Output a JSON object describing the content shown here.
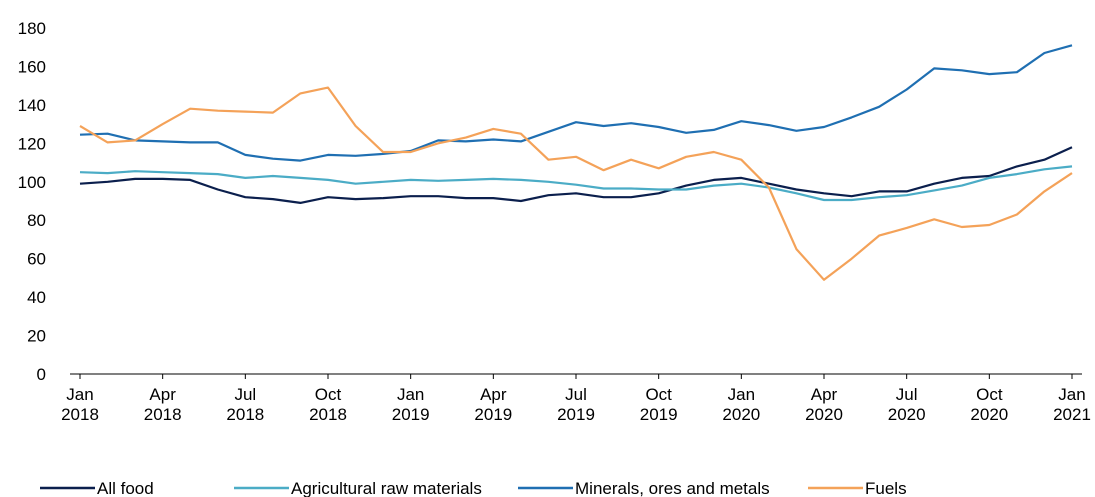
{
  "chart_data": {
    "type": "line",
    "categories": [
      "Jan 2018",
      null,
      null,
      "Apr 2018",
      null,
      null,
      "Jul 2018",
      null,
      null,
      "Oct 2018",
      null,
      null,
      "Jan 2019",
      null,
      null,
      "Apr 2019",
      null,
      null,
      "Jul 2019",
      null,
      null,
      "Oct 2019",
      null,
      null,
      "Jan 2020",
      null,
      null,
      "Apr 2020",
      null,
      null,
      "Jul 2020",
      null,
      null,
      "Oct 2020",
      null,
      null,
      "Jan 2021"
    ],
    "series": [
      {
        "name": "All food",
        "color": "#0b1f4d",
        "values": [
          99,
          100,
          101.5,
          101.5,
          101,
          96,
          92,
          91,
          89,
          92,
          91,
          91.5,
          92.5,
          92.5,
          91.5,
          91.5,
          90,
          93,
          94,
          92,
          92,
          94,
          98,
          101,
          102,
          99,
          96,
          94,
          92.5,
          95,
          95,
          99,
          102,
          103,
          108,
          111.5,
          118
        ]
      },
      {
        "name": "Agricultural raw materials",
        "color": "#4bacc6",
        "values": [
          105,
          104.5,
          105.5,
          105,
          104.5,
          104,
          102,
          103,
          102,
          101,
          99,
          100,
          101,
          100.5,
          101,
          101.5,
          101,
          100,
          98.5,
          96.5,
          96.5,
          96,
          96,
          98,
          99,
          97,
          94,
          90.5,
          90.5,
          92,
          93,
          95.5,
          98,
          102,
          104,
          106.5,
          108
        ]
      },
      {
        "name": "Minerals, ores and metals",
        "color": "#1f6fb2",
        "values": [
          124.5,
          125,
          121.5,
          121,
          120.5,
          120.5,
          114,
          112,
          111,
          114,
          113.5,
          114.5,
          116,
          121.5,
          121,
          122,
          121,
          126,
          131,
          129,
          130.5,
          128.5,
          125.5,
          127,
          131.5,
          129.5,
          126.5,
          128.5,
          133.5,
          139,
          148,
          159,
          158,
          156,
          157,
          167,
          171
        ]
      },
      {
        "name": "Fuels",
        "color": "#f4a259",
        "values": [
          129,
          120.5,
          121.5,
          130,
          138,
          137,
          136.5,
          136,
          146,
          149,
          129,
          115.5,
          115.5,
          120,
          123,
          127.5,
          125,
          111.5,
          113,
          106,
          111.5,
          107,
          113,
          115.5,
          111.5,
          97,
          65,
          49,
          60,
          72,
          76,
          80.5,
          76.5,
          77.5,
          83,
          95,
          104.5
        ]
      }
    ],
    "ylim": [
      0,
      180
    ],
    "yticks": [
      0,
      20,
      40,
      60,
      80,
      100,
      120,
      140,
      160,
      180
    ],
    "grid": false,
    "legend": "bottom"
  }
}
